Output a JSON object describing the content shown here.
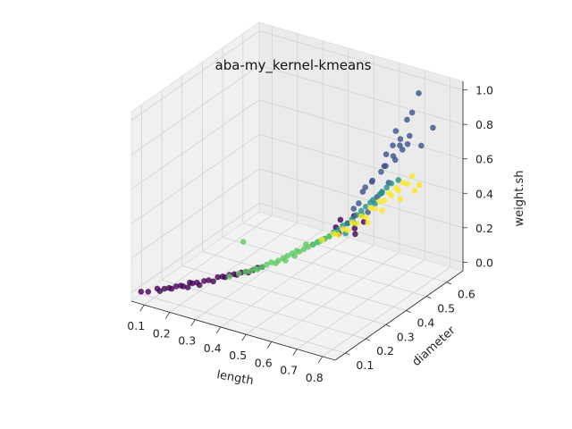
{
  "chart_data": {
    "type": "scatter",
    "projection": "3d",
    "title": "aba-my_kernel-kmeans",
    "xlabel": "length",
    "ylabel": "diameter",
    "zlabel": "weight.sh",
    "xlim": [
      0.05,
      0.85
    ],
    "ylim": [
      0.05,
      0.68
    ],
    "zlim": [
      -0.05,
      1.05
    ],
    "xticks": [
      "0.1",
      "0.2",
      "0.3",
      "0.4",
      "0.5",
      "0.6",
      "0.7",
      "0.8"
    ],
    "yticks": [
      "0.1",
      "0.2",
      "0.3",
      "0.4",
      "0.5",
      "0.6"
    ],
    "zticks": [
      "0.0",
      "0.2",
      "0.4",
      "0.6",
      "0.8",
      "1.0"
    ],
    "grid": true,
    "colormap": "viridis",
    "cluster_colors": [
      "#440154",
      "#3b528b",
      "#21918c",
      "#5ec962",
      "#fde725"
    ],
    "series": [
      {
        "cluster": 0,
        "color": "#440154",
        "points": [
          [
            0.08,
            0.06,
            0.01
          ],
          [
            0.1,
            0.07,
            0.01
          ],
          [
            0.12,
            0.09,
            0.02
          ],
          [
            0.14,
            0.1,
            0.02
          ],
          [
            0.15,
            0.11,
            0.02
          ],
          [
            0.17,
            0.12,
            0.03
          ],
          [
            0.19,
            0.13,
            0.03
          ],
          [
            0.2,
            0.15,
            0.04
          ],
          [
            0.22,
            0.16,
            0.04
          ],
          [
            0.24,
            0.17,
            0.05
          ],
          [
            0.25,
            0.18,
            0.05
          ],
          [
            0.27,
            0.2,
            0.06
          ],
          [
            0.28,
            0.21,
            0.06
          ],
          [
            0.3,
            0.22,
            0.07
          ],
          [
            0.31,
            0.23,
            0.07
          ],
          [
            0.33,
            0.24,
            0.08
          ],
          [
            0.34,
            0.25,
            0.08
          ],
          [
            0.36,
            0.26,
            0.09
          ],
          [
            0.37,
            0.27,
            0.1
          ],
          [
            0.38,
            0.28,
            0.1
          ],
          [
            0.2,
            0.14,
            0.02
          ],
          [
            0.23,
            0.16,
            0.03
          ],
          [
            0.26,
            0.19,
            0.04
          ],
          [
            0.29,
            0.21,
            0.06
          ],
          [
            0.32,
            0.23,
            0.07
          ],
          [
            0.35,
            0.25,
            0.08
          ],
          [
            0.18,
            0.13,
            0.03
          ],
          [
            0.21,
            0.15,
            0.04
          ],
          [
            0.13,
            0.09,
            0.01
          ],
          [
            0.16,
            0.11,
            0.02
          ],
          [
            0.55,
            0.43,
            0.28
          ],
          [
            0.58,
            0.45,
            0.3
          ],
          [
            0.6,
            0.46,
            0.27
          ],
          [
            0.57,
            0.42,
            0.26
          ],
          [
            0.62,
            0.48,
            0.3
          ],
          [
            0.56,
            0.44,
            0.32
          ],
          [
            0.59,
            0.47,
            0.33
          ],
          [
            0.61,
            0.45,
            0.25
          ]
        ]
      },
      {
        "cluster": 1,
        "color": "#3b528b",
        "points": [
          [
            0.6,
            0.5,
            0.45
          ],
          [
            0.62,
            0.52,
            0.5
          ],
          [
            0.64,
            0.54,
            0.55
          ],
          [
            0.66,
            0.53,
            0.6
          ],
          [
            0.65,
            0.55,
            0.58
          ],
          [
            0.68,
            0.55,
            0.65
          ],
          [
            0.67,
            0.56,
            0.7
          ],
          [
            0.7,
            0.56,
            0.75
          ],
          [
            0.69,
            0.55,
            0.8
          ],
          [
            0.72,
            0.57,
            0.72
          ],
          [
            0.71,
            0.58,
            0.85
          ],
          [
            0.73,
            0.58,
            0.9
          ],
          [
            0.74,
            0.6,
            1.0
          ],
          [
            0.78,
            0.62,
            0.8
          ],
          [
            0.63,
            0.51,
            0.52
          ],
          [
            0.66,
            0.54,
            0.66
          ],
          [
            0.7,
            0.57,
            0.68
          ],
          [
            0.68,
            0.56,
            0.62
          ],
          [
            0.61,
            0.5,
            0.48
          ],
          [
            0.64,
            0.52,
            0.42
          ],
          [
            0.72,
            0.58,
            0.76
          ],
          [
            0.69,
            0.57,
            0.7
          ],
          [
            0.65,
            0.53,
            0.44
          ],
          [
            0.67,
            0.54,
            0.5
          ],
          [
            0.58,
            0.48,
            0.36
          ],
          [
            0.6,
            0.48,
            0.4
          ],
          [
            0.75,
            0.6,
            0.7
          ],
          [
            0.62,
            0.5,
            0.34
          ]
        ]
      },
      {
        "cluster": 2,
        "color": "#21918c",
        "points": [
          [
            0.5,
            0.38,
            0.2
          ],
          [
            0.52,
            0.4,
            0.22
          ],
          [
            0.54,
            0.41,
            0.24
          ],
          [
            0.56,
            0.43,
            0.27
          ],
          [
            0.58,
            0.45,
            0.3
          ],
          [
            0.6,
            0.47,
            0.34
          ],
          [
            0.62,
            0.49,
            0.38
          ],
          [
            0.64,
            0.5,
            0.42
          ],
          [
            0.66,
            0.52,
            0.46
          ],
          [
            0.68,
            0.54,
            0.5
          ],
          [
            0.55,
            0.42,
            0.26
          ],
          [
            0.57,
            0.44,
            0.29
          ],
          [
            0.59,
            0.46,
            0.32
          ],
          [
            0.61,
            0.48,
            0.36
          ],
          [
            0.63,
            0.5,
            0.4
          ],
          [
            0.65,
            0.52,
            0.44
          ],
          [
            0.67,
            0.53,
            0.48
          ],
          [
            0.53,
            0.4,
            0.23
          ],
          [
            0.51,
            0.39,
            0.21
          ],
          [
            0.7,
            0.55,
            0.52
          ],
          [
            0.6,
            0.46,
            0.3
          ],
          [
            0.62,
            0.47,
            0.35
          ],
          [
            0.64,
            0.51,
            0.39
          ],
          [
            0.58,
            0.44,
            0.25
          ]
        ]
      },
      {
        "cluster": 3,
        "color": "#5ec962",
        "points": [
          [
            0.3,
            0.22,
            0.06
          ],
          [
            0.32,
            0.24,
            0.07
          ],
          [
            0.34,
            0.25,
            0.08
          ],
          [
            0.36,
            0.27,
            0.09
          ],
          [
            0.38,
            0.28,
            0.1
          ],
          [
            0.4,
            0.3,
            0.12
          ],
          [
            0.42,
            0.31,
            0.13
          ],
          [
            0.44,
            0.33,
            0.15
          ],
          [
            0.46,
            0.35,
            0.17
          ],
          [
            0.48,
            0.36,
            0.18
          ],
          [
            0.5,
            0.38,
            0.2
          ],
          [
            0.52,
            0.39,
            0.22
          ],
          [
            0.54,
            0.41,
            0.24
          ],
          [
            0.56,
            0.42,
            0.26
          ],
          [
            0.41,
            0.31,
            0.11
          ],
          [
            0.43,
            0.32,
            0.14
          ],
          [
            0.45,
            0.34,
            0.16
          ],
          [
            0.47,
            0.35,
            0.17
          ],
          [
            0.49,
            0.37,
            0.19
          ],
          [
            0.39,
            0.29,
            0.11
          ],
          [
            0.37,
            0.27,
            0.09
          ],
          [
            0.35,
            0.26,
            0.08
          ],
          [
            0.51,
            0.39,
            0.21
          ],
          [
            0.53,
            0.4,
            0.23
          ],
          [
            0.33,
            0.25,
            0.25
          ],
          [
            0.44,
            0.32,
            0.13
          ],
          [
            0.46,
            0.34,
            0.15
          ],
          [
            0.48,
            0.37,
            0.2
          ]
        ]
      },
      {
        "cluster": 4,
        "color": "#fde725",
        "points": [
          [
            0.52,
            0.4,
            0.22
          ],
          [
            0.55,
            0.42,
            0.25
          ],
          [
            0.57,
            0.44,
            0.27
          ],
          [
            0.59,
            0.46,
            0.3
          ],
          [
            0.61,
            0.48,
            0.33
          ],
          [
            0.63,
            0.5,
            0.37
          ],
          [
            0.65,
            0.52,
            0.4
          ],
          [
            0.67,
            0.54,
            0.44
          ],
          [
            0.69,
            0.55,
            0.47
          ],
          [
            0.71,
            0.56,
            0.5
          ],
          [
            0.73,
            0.58,
            0.53
          ],
          [
            0.6,
            0.47,
            0.29
          ],
          [
            0.62,
            0.49,
            0.32
          ],
          [
            0.64,
            0.51,
            0.36
          ],
          [
            0.66,
            0.53,
            0.4
          ],
          [
            0.68,
            0.54,
            0.43
          ],
          [
            0.7,
            0.55,
            0.46
          ],
          [
            0.72,
            0.57,
            0.49
          ],
          [
            0.58,
            0.45,
            0.26
          ],
          [
            0.56,
            0.43,
            0.24
          ],
          [
            0.74,
            0.58,
            0.45
          ],
          [
            0.7,
            0.56,
            0.4
          ],
          [
            0.66,
            0.52,
            0.35
          ],
          [
            0.75,
            0.59,
            0.48
          ],
          [
            0.62,
            0.5,
            0.28
          ]
        ]
      }
    ]
  }
}
